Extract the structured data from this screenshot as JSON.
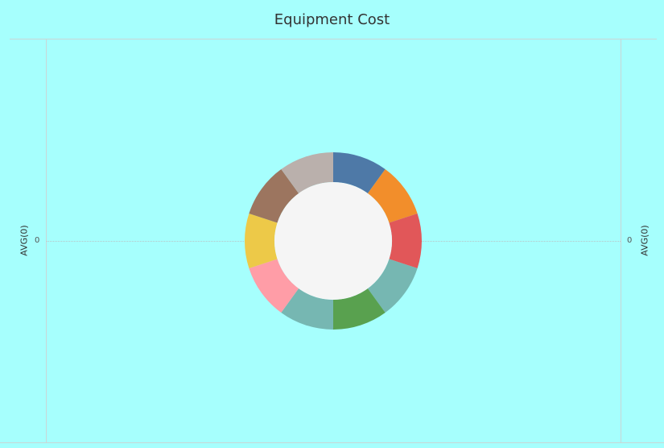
{
  "page": {
    "background": "#a6fffd"
  },
  "chart_data": {
    "type": "pie",
    "title": "Equipment Cost",
    "ylabel_left": "AVG(0)",
    "ylabel_right": "AVG(0)",
    "y_tick_left": "0",
    "y_tick_right": "0",
    "hole_color": "#f5f5f5",
    "slices": [
      {
        "value": 1,
        "color": "#4e79a7"
      },
      {
        "value": 1,
        "color": "#f28e2b"
      },
      {
        "value": 1,
        "color": "#e15759"
      },
      {
        "value": 1,
        "color": "#76b7b2"
      },
      {
        "value": 1,
        "color": "#59a14f"
      },
      {
        "value": 1,
        "color": "#76b7b2"
      },
      {
        "value": 1,
        "color": "#ff9da7"
      },
      {
        "value": 1,
        "color": "#edc948"
      },
      {
        "value": 1,
        "color": "#9c755f"
      },
      {
        "value": 1,
        "color": "#bab0ac"
      }
    ]
  }
}
